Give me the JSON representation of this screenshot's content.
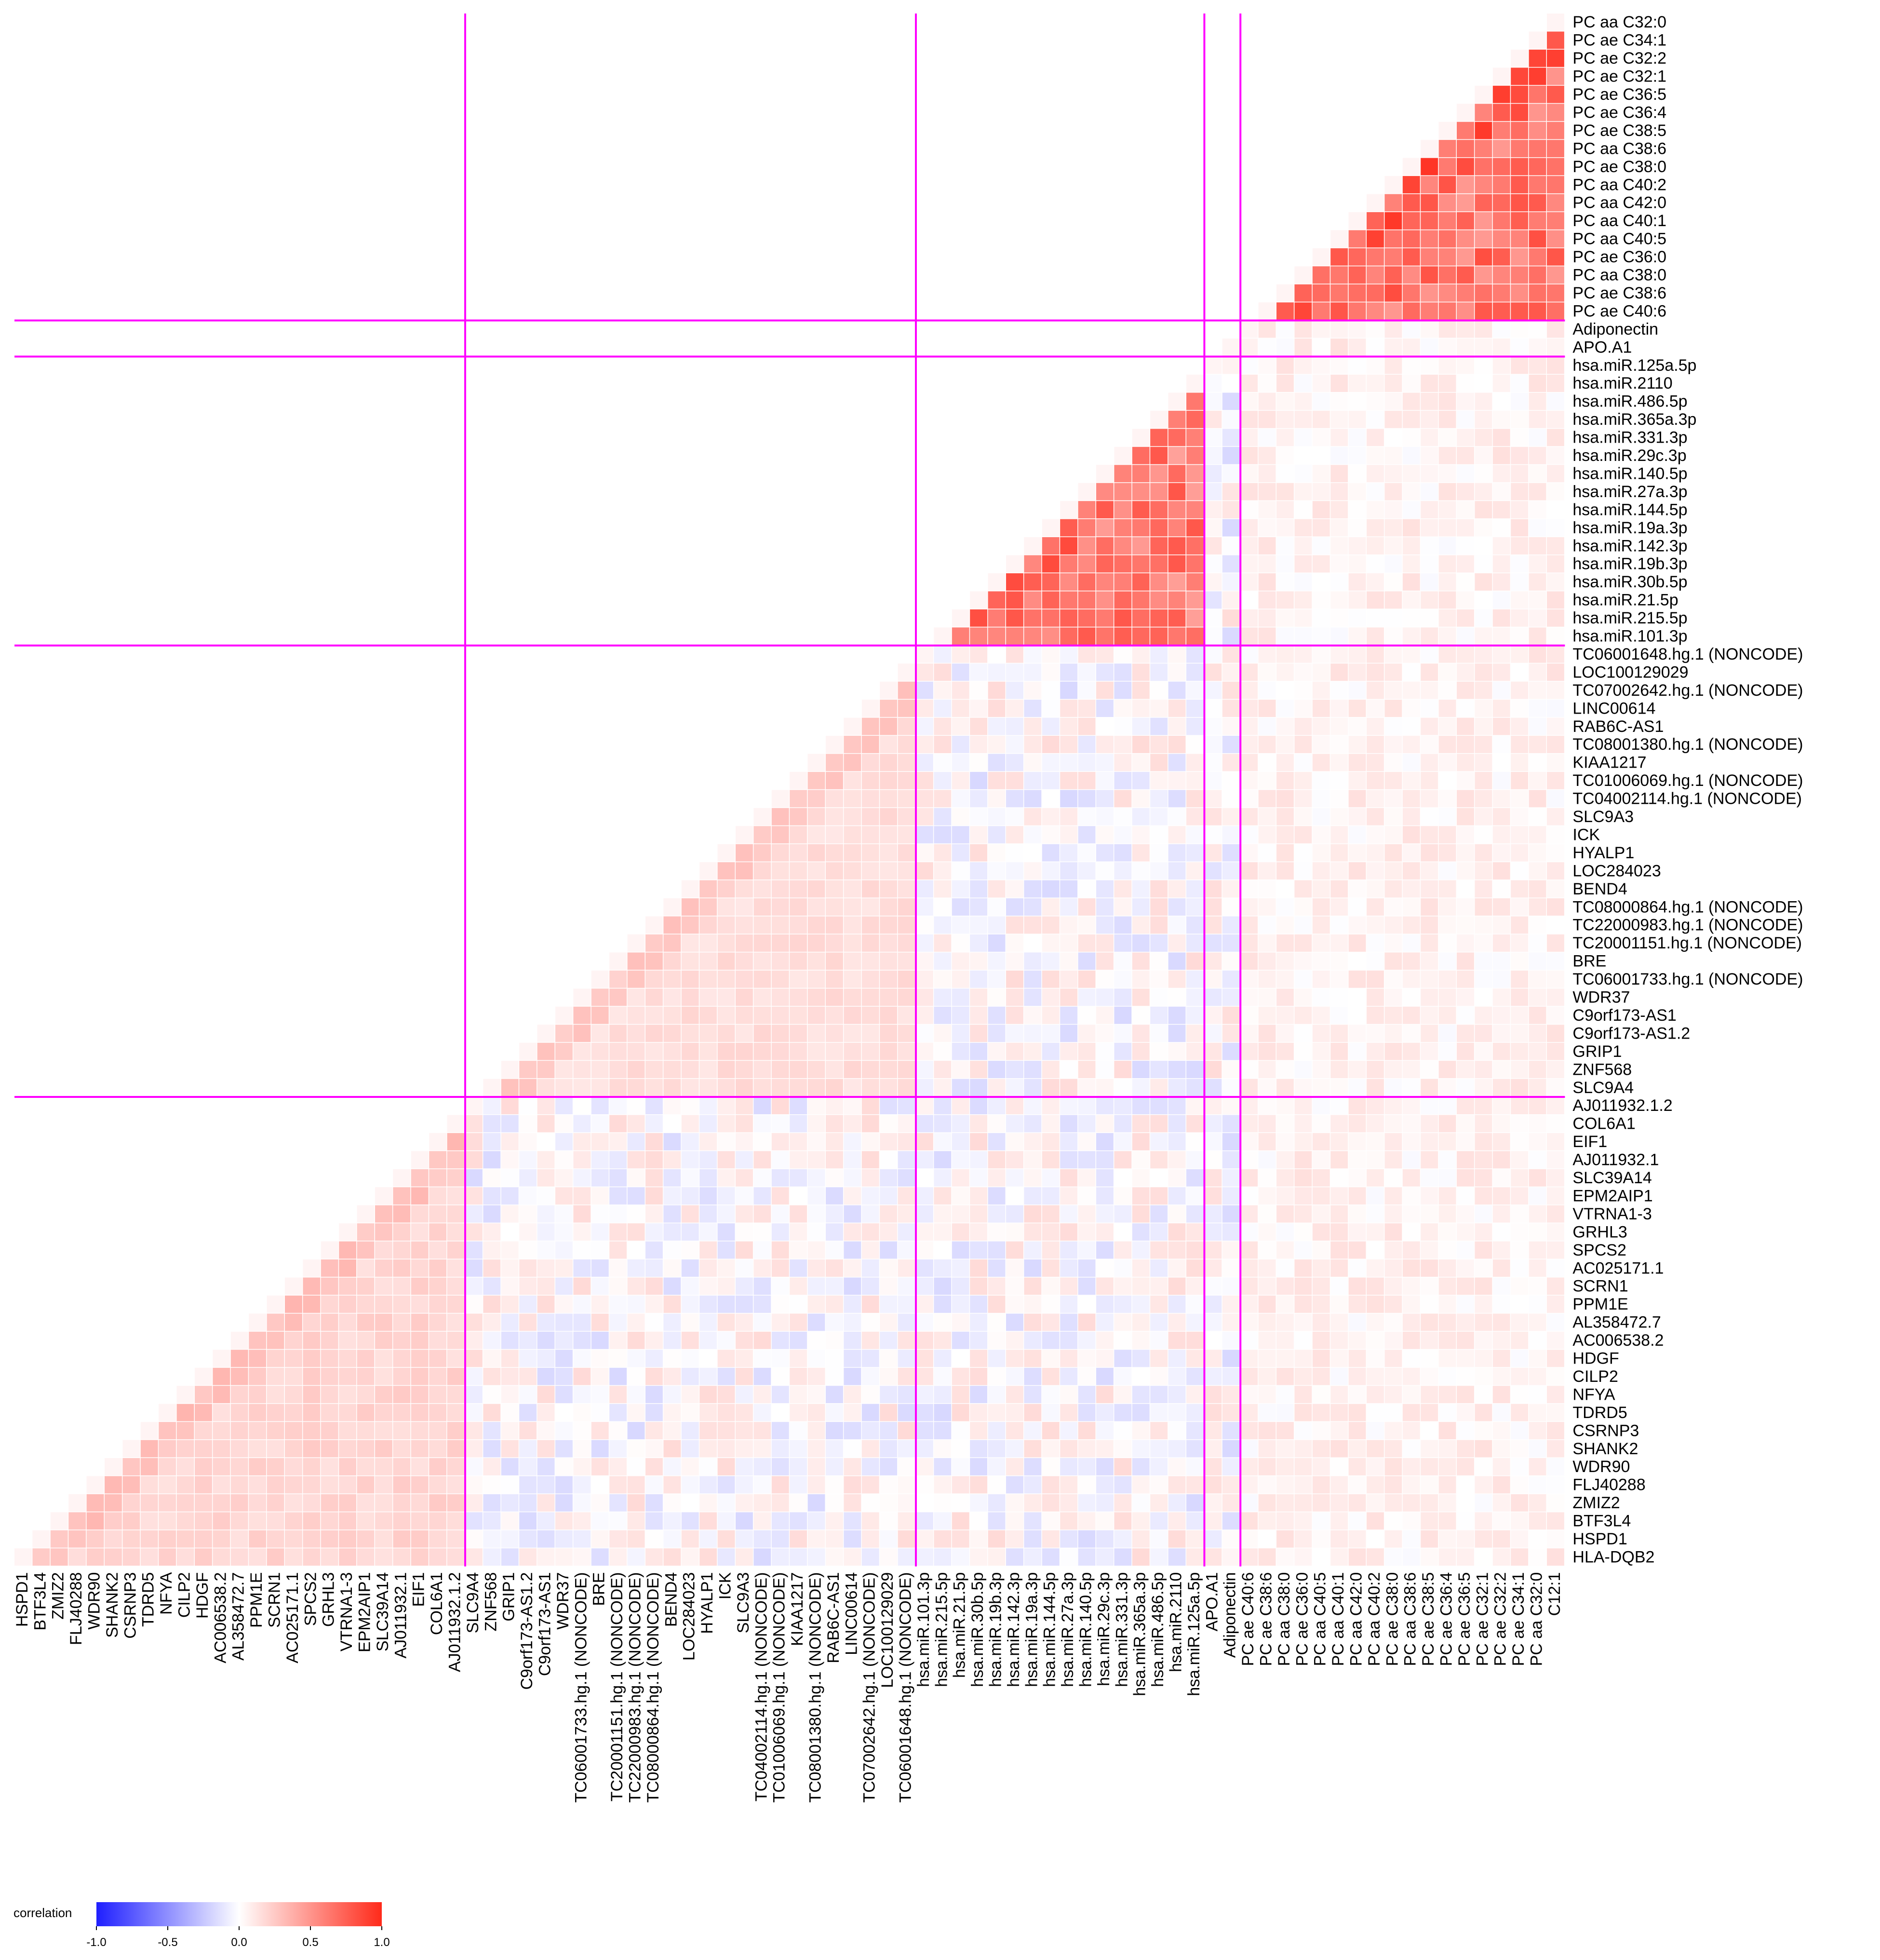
{
  "chart_data": {
    "type": "heatmap",
    "title": "",
    "xlabel": "",
    "ylabel": "",
    "row_labels": [
      "PC aa C32:0",
      "PC ae C34:1",
      "PC ae C32:2",
      "PC ae C32:1",
      "PC ae C36:5",
      "PC ae C36:4",
      "PC ae C38:5",
      "PC aa C38:6",
      "PC ae C38:0",
      "PC aa C40:2",
      "PC aa C42:0",
      "PC aa C40:1",
      "PC aa C40:5",
      "PC ae C36:0",
      "PC aa C38:0",
      "PC ae C38:6",
      "PC ae C40:6",
      "Adiponectin",
      "APO.A1",
      "hsa.miR.125a.5p",
      "hsa.miR.2110",
      "hsa.miR.486.5p",
      "hsa.miR.365a.3p",
      "hsa.miR.331.3p",
      "hsa.miR.29c.3p",
      "hsa.miR.140.5p",
      "hsa.miR.27a.3p",
      "hsa.miR.144.5p",
      "hsa.miR.19a.3p",
      "hsa.miR.142.3p",
      "hsa.miR.19b.3p",
      "hsa.miR.30b.5p",
      "hsa.miR.21.5p",
      "hsa.miR.215.5p",
      "hsa.miR.101.3p",
      "TC06001648.hg.1 (NONCODE)",
      "LOC100129029",
      "TC07002642.hg.1 (NONCODE)",
      "LINC00614",
      "RAB6C-AS1",
      "TC08001380.hg.1 (NONCODE)",
      "KIAA1217",
      "TC01006069.hg.1 (NONCODE)",
      "TC04002114.hg.1 (NONCODE)",
      "SLC9A3",
      "ICK",
      "HYALP1",
      "LOC284023",
      "BEND4",
      "TC08000864.hg.1 (NONCODE)",
      "TC22000983.hg.1 (NONCODE)",
      "TC20001151.hg.1 (NONCODE)",
      "BRE",
      "TC06001733.hg.1 (NONCODE)",
      "WDR37",
      "C9orf173-AS1",
      "C9orf173-AS1.2",
      "GRIP1",
      "ZNF568",
      "SLC9A4",
      "AJ011932.1.2",
      "COL6A1",
      "EIF1",
      "AJ011932.1",
      "SLC39A14",
      "EPM2AIP1",
      "VTRNA1-3",
      "GRHL3",
      "SPCS2",
      "AC025171.1",
      "SCRN1",
      "PPM1E",
      "AL358472.7",
      "AC006538.2",
      "HDGF",
      "CILP2",
      "NFYA",
      "TDRD5",
      "CSRNP3",
      "SHANK2",
      "WDR90",
      "FLJ40288",
      "ZMIZ2",
      "BTF3L4",
      "HSPD1",
      "HLA-DQB2"
    ],
    "col_labels": [
      "HSPD1",
      "BTF3L4",
      "ZMIZ2",
      "FLJ40288",
      "WDR90",
      "SHANK2",
      "CSRNP3",
      "TDRD5",
      "NFYA",
      "CILP2",
      "HDGF",
      "AC006538.2",
      "AL358472.7",
      "PPM1E",
      "SCRN1",
      "AC025171.1",
      "SPCS2",
      "GRHL3",
      "VTRNA1-3",
      "EPM2AIP1",
      "SLC39A14",
      "AJ011932.1",
      "EIF1",
      "COL6A1",
      "AJ011932.1.2",
      "SLC9A4",
      "ZNF568",
      "GRIP1",
      "C9orf173-AS1.2",
      "C9orf173-AS1",
      "WDR37",
      "TC06001733.hg.1 (NONCODE)",
      "BRE",
      "TC20001151.hg.1 (NONCODE)",
      "TC22000983.hg.1 (NONCODE)",
      "TC08000864.hg.1 (NONCODE)",
      "BEND4",
      "LOC284023",
      "HYALP1",
      "ICK",
      "SLC9A3",
      "TC04002114.hg.1 (NONCODE)",
      "TC01006069.hg.1 (NONCODE)",
      "KIAA1217",
      "TC08001380.hg.1 (NONCODE)",
      "RAB6C-AS1",
      "LINC00614",
      "TC07002642.hg.1 (NONCODE)",
      "LOC100129029",
      "TC06001648.hg.1 (NONCODE)",
      "hsa.miR.101.3p",
      "hsa.miR.215.5p",
      "hsa.miR.21.5p",
      "hsa.miR.30b.5p",
      "hsa.miR.19b.3p",
      "hsa.miR.142.3p",
      "hsa.miR.19a.3p",
      "hsa.miR.144.5p",
      "hsa.miR.27a.3p",
      "hsa.miR.140.5p",
      "hsa.miR.29c.3p",
      "hsa.miR.331.3p",
      "hsa.miR.365a.3p",
      "hsa.miR.486.5p",
      "hsa.miR.2110",
      "hsa.miR.125a.5p",
      "APO.A1",
      "Adiponectin",
      "PC ae C40:6",
      "PC ae C38:6",
      "PC aa C38:0",
      "PC ae C36:0",
      "PC aa C40:5",
      "PC aa C40:1",
      "PC aa C42:0",
      "PC aa C40:2",
      "PC ae C38:0",
      "PC aa C38:6",
      "PC ae C38:5",
      "PC ae C36:4",
      "PC ae C36:5",
      "PC ae C32:1",
      "PC ae C32:2",
      "PC ae C34:1",
      "PC aa C32:0",
      "C12:1"
    ],
    "row_block_sizes": [
      17,
      2,
      16,
      25,
      26
    ],
    "col_block_sizes": [
      25,
      25,
      16,
      2,
      18
    ],
    "within_block_level": [
      0.85,
      0.3,
      0.8,
      0.2,
      0.25
    ],
    "value_range": [
      -1.0,
      1.0
    ],
    "colors": {
      "low": "#1f1fff",
      "mid": "#ffffff",
      "high": "#ff2a1a",
      "separator": "#ff00ff"
    },
    "legend": {
      "title": "correlation",
      "ticks": [
        "-1.0",
        "-0.5",
        "0.0",
        "0.5",
        "1.0"
      ],
      "placement": "bottom-left"
    }
  }
}
